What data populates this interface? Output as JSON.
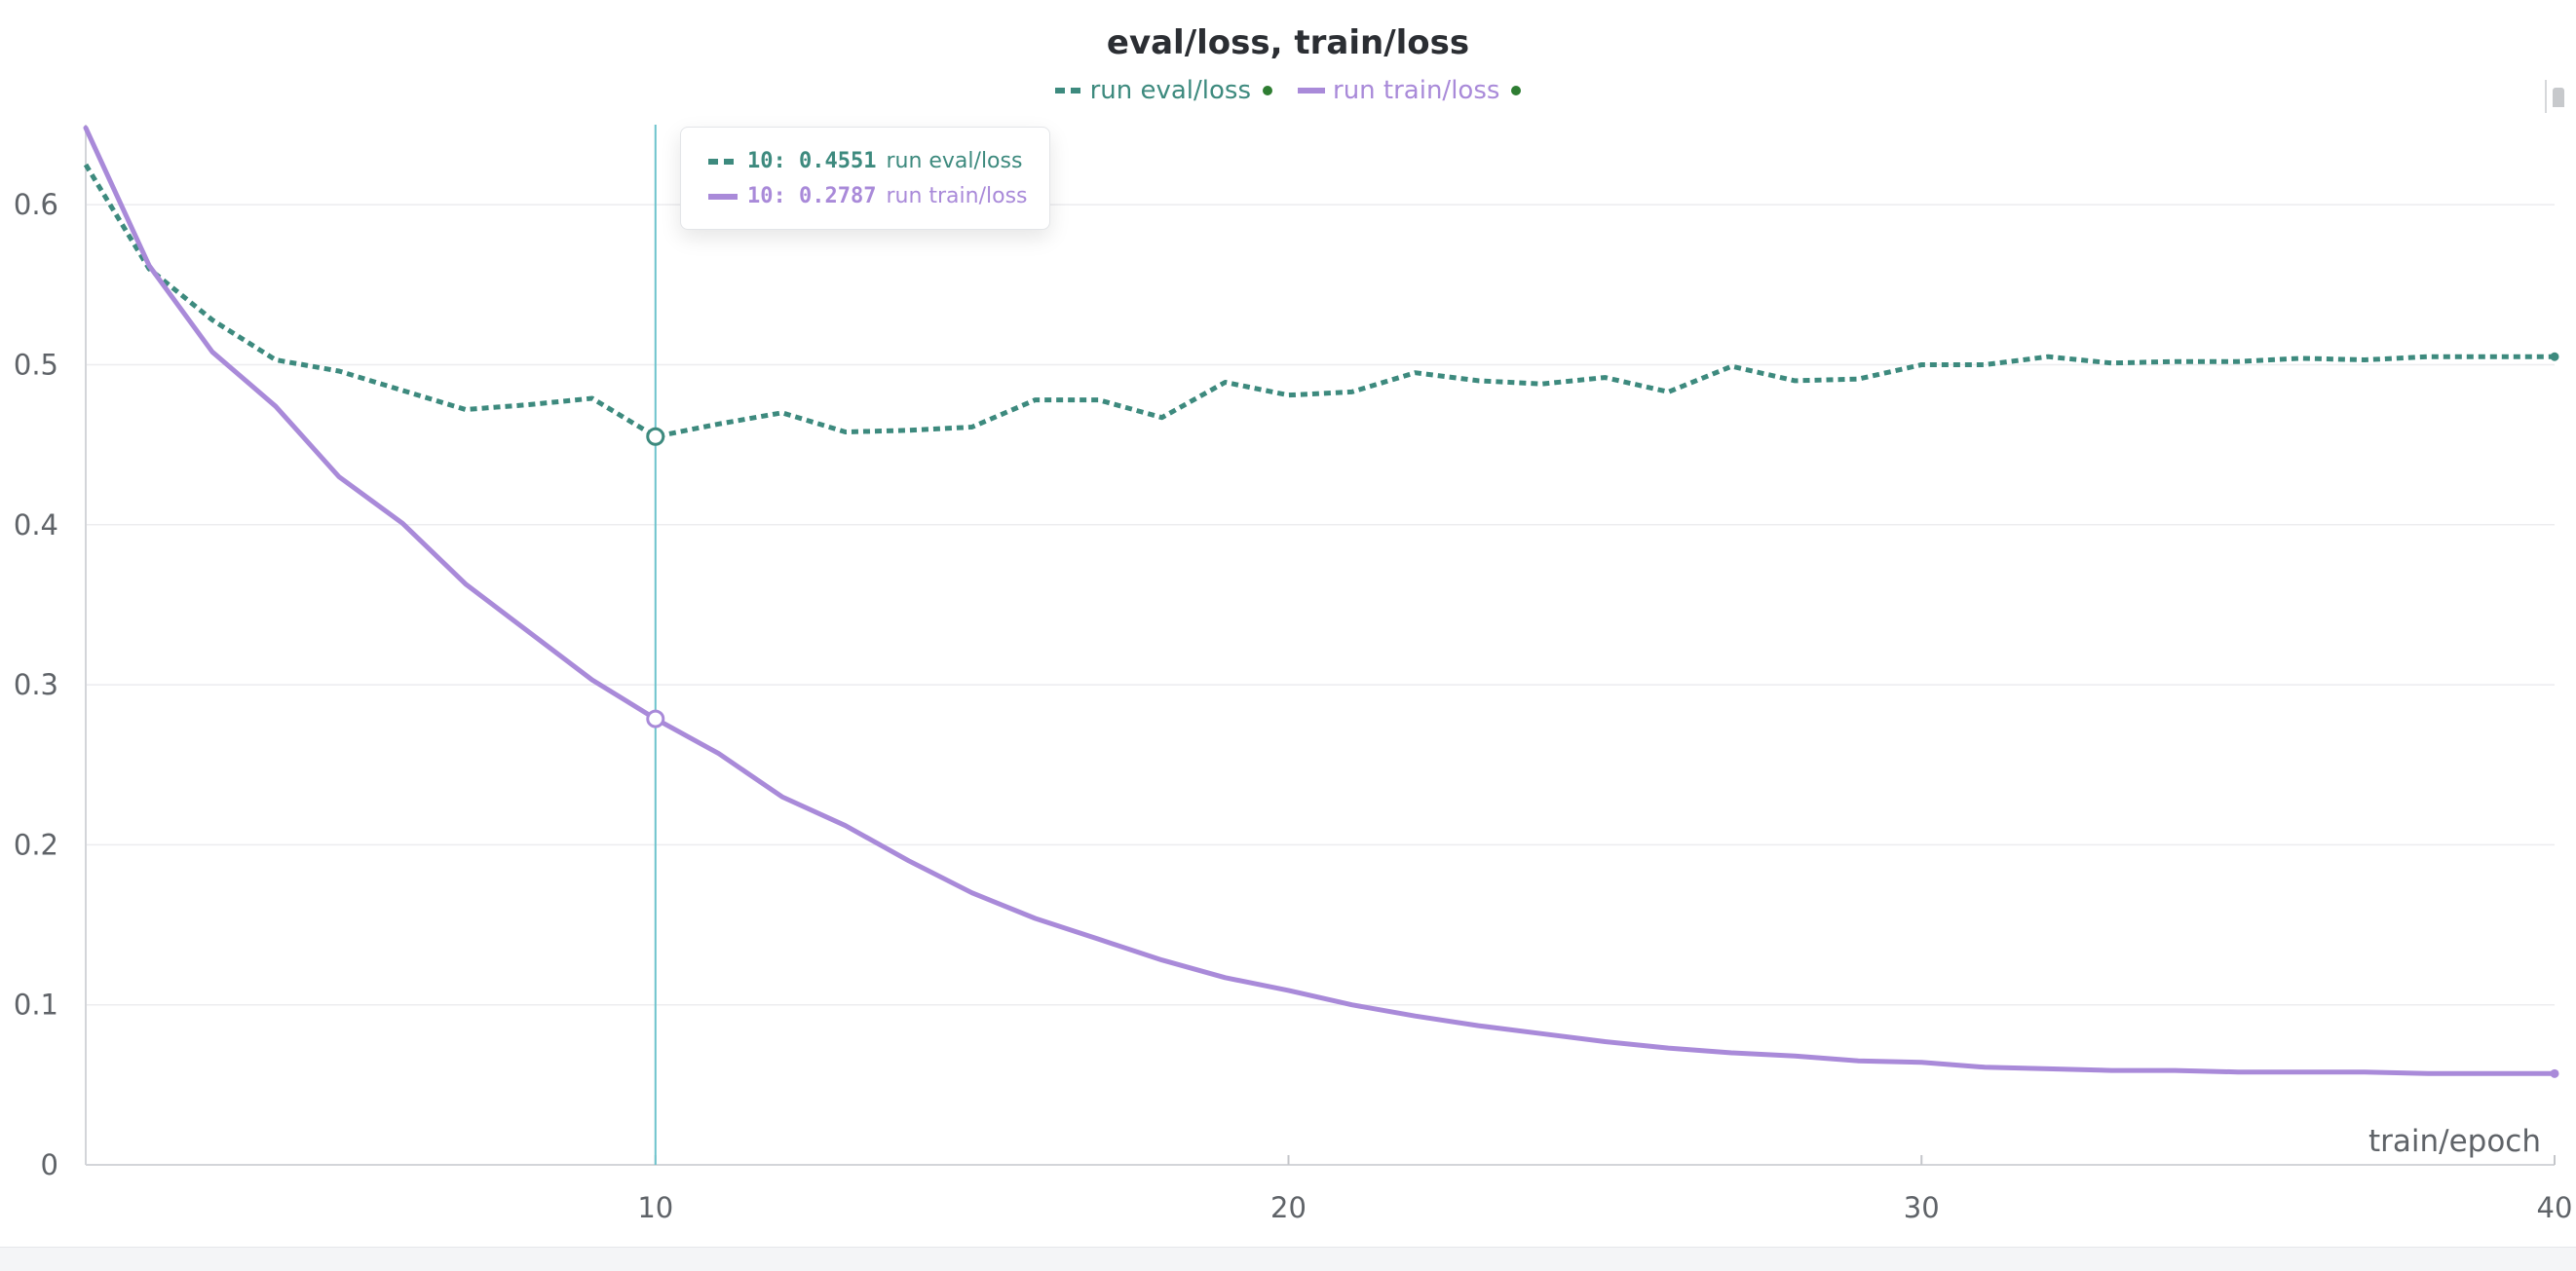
{
  "chart_data": {
    "type": "line",
    "title": "eval/loss, train/loss",
    "xlabel": "train/epoch",
    "ylabel": "",
    "xlim": [
      1,
      40
    ],
    "ylim": [
      0,
      0.65
    ],
    "x_ticks": [
      10,
      20,
      30,
      40
    ],
    "y_ticks": [
      0,
      0.1,
      0.2,
      0.3,
      0.4,
      0.5,
      0.6
    ],
    "grid": true,
    "legend": "top-center",
    "series": [
      {
        "name": "run eval/loss",
        "color": "#3d8a7e",
        "style": "dashed",
        "x": [
          1,
          2,
          3,
          4,
          5,
          6,
          7,
          8,
          9,
          10,
          11,
          12,
          13,
          14,
          15,
          16,
          17,
          18,
          19,
          20,
          21,
          22,
          23,
          24,
          25,
          26,
          27,
          28,
          29,
          30,
          31,
          32,
          33,
          34,
          35,
          36,
          37,
          38,
          39,
          40
        ],
        "values": [
          0.625,
          0.56,
          0.528,
          0.503,
          0.496,
          0.484,
          0.472,
          0.475,
          0.479,
          0.4551,
          0.463,
          0.47,
          0.458,
          0.459,
          0.461,
          0.478,
          0.478,
          0.467,
          0.489,
          0.481,
          0.483,
          0.495,
          0.49,
          0.488,
          0.492,
          0.483,
          0.499,
          0.49,
          0.491,
          0.5,
          0.5,
          0.505,
          0.501,
          0.502,
          0.502,
          0.504,
          0.503,
          0.505,
          0.505,
          0.505
        ]
      },
      {
        "name": "run train/loss",
        "color": "#a98ad9",
        "style": "solid",
        "x": [
          1,
          2,
          3,
          4,
          5,
          6,
          7,
          8,
          9,
          10,
          11,
          12,
          13,
          14,
          15,
          16,
          17,
          18,
          19,
          20,
          21,
          22,
          23,
          24,
          25,
          26,
          27,
          28,
          29,
          30,
          31,
          32,
          33,
          34,
          35,
          36,
          37,
          38,
          39,
          40
        ],
        "values": [
          0.648,
          0.562,
          0.508,
          0.474,
          0.43,
          0.401,
          0.363,
          0.333,
          0.303,
          0.2787,
          0.257,
          0.23,
          0.212,
          0.19,
          0.17,
          0.154,
          0.141,
          0.128,
          0.117,
          0.109,
          0.1,
          0.093,
          0.087,
          0.082,
          0.077,
          0.073,
          0.07,
          0.068,
          0.065,
          0.064,
          0.061,
          0.06,
          0.059,
          0.059,
          0.058,
          0.058,
          0.058,
          0.057,
          0.057,
          0.057
        ]
      }
    ],
    "hover": {
      "x": 10,
      "rows": [
        {
          "prefix": "10: 0.4551",
          "label": "run eval/loss"
        },
        {
          "prefix": "10: 0.2787",
          "label": "run train/loss"
        }
      ]
    }
  }
}
